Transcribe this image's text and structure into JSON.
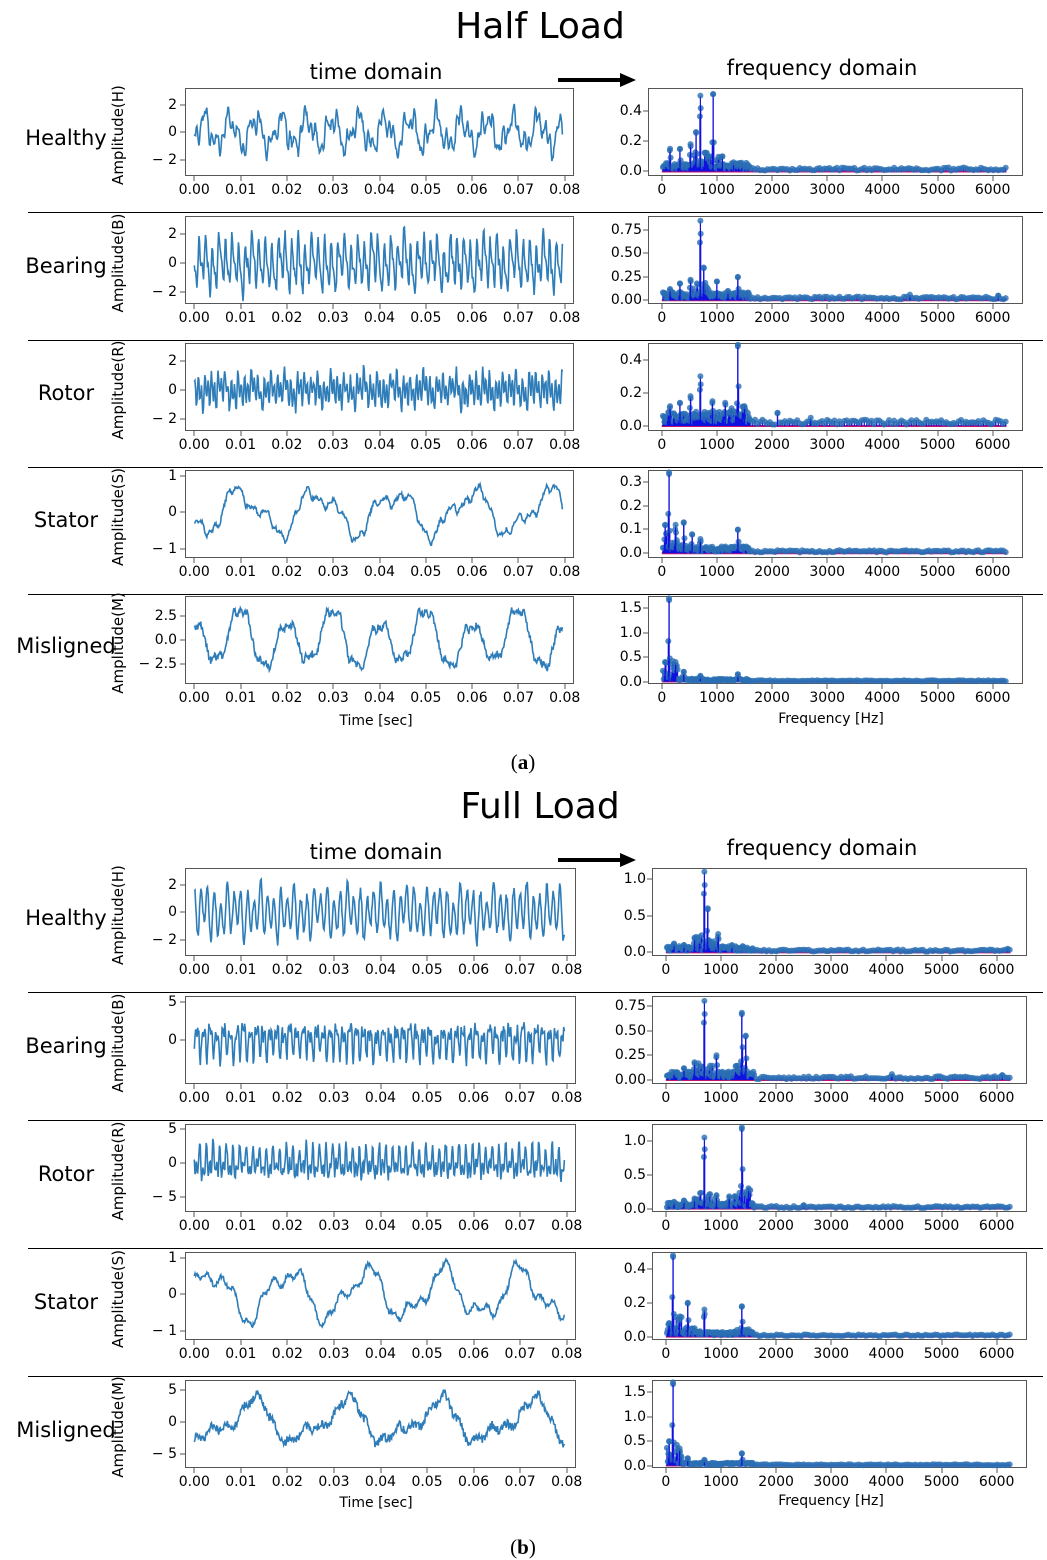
{
  "figure": {
    "caption_a": "a",
    "caption_b": "b",
    "arrow_icon": "right-arrow-icon"
  },
  "colors": {
    "time_line": "#2f7db8",
    "stem": "#1010e0",
    "marker": "#2a6fb4",
    "baseline": "#c0146e"
  },
  "chart_data": [
    {
      "panel": "a",
      "title": "Half Load",
      "left_column_title": "time domain",
      "right_column_title": "frequency domain",
      "time_xlabel": "Time [sec]",
      "freq_xlabel": "Frequency [Hz]",
      "time_xticks": [
        "0.00",
        "0.01",
        "0.02",
        "0.03",
        "0.04",
        "0.05",
        "0.06",
        "0.07",
        "0.08"
      ],
      "freq_xticks": [
        "0",
        "1000",
        "2000",
        "3000",
        "4000",
        "5000",
        "6000"
      ],
      "xlim_time": [
        -0.002,
        0.082
      ],
      "xlim_freq": [
        -250,
        6550
      ],
      "rows": [
        {
          "name": "Healthy",
          "ylabel": "Amplitude(H)",
          "time": {
            "type": "line",
            "ylim": [
              -3.2,
              3.2
            ],
            "yticks": [
              "2",
              "0",
              "− 2"
            ],
            "ytick_values": [
              2,
              0,
              -2
            ],
            "amplitude": 2.4,
            "components": [
              [
                180,
                1.0
              ],
              [
                420,
                0.6
              ],
              [
                890,
                0.45
              ],
              [
                1300,
                0.25
              ]
            ],
            "noise": 0.25
          },
          "freq": {
            "type": "stem",
            "ylim": [
              -0.03,
              0.55
            ],
            "yticks": [
              "0.4",
              "0.2",
              "0.0"
            ],
            "ytick_values": [
              0.4,
              0.2,
              0.0
            ],
            "peaks": [
              [
                150,
                0.15
              ],
              [
                330,
                0.15
              ],
              [
                520,
                0.18
              ],
              [
                620,
                0.26
              ],
              [
                700,
                0.5
              ],
              [
                930,
                0.51
              ],
              [
                1100,
                0.1
              ],
              [
                1300,
                0.06
              ],
              [
                1450,
                0.04
              ]
            ],
            "floor": 0.02
          }
        },
        {
          "name": "Bearing",
          "ylabel": "Amplitude(B)",
          "time": {
            "type": "line",
            "ylim": [
              -2.8,
              3.2
            ],
            "yticks": [
              "2",
              "0",
              "− 2"
            ],
            "ytick_values": [
              2,
              0,
              -2
            ],
            "amplitude": 2.6,
            "components": [
              [
                700,
                1.0
              ],
              [
                1400,
                0.5
              ],
              [
                300,
                0.35
              ],
              [
                160,
                0.2
              ]
            ],
            "noise": 0.3
          },
          "freq": {
            "type": "stem",
            "ylim": [
              -0.04,
              0.9
            ],
            "yticks": [
              "0.75",
              "0.50",
              "0.25",
              "0.00"
            ],
            "ytick_values": [
              0.75,
              0.5,
              0.25,
              0.0
            ],
            "peaks": [
              [
                150,
                0.12
              ],
              [
                330,
                0.18
              ],
              [
                520,
                0.22
              ],
              [
                700,
                0.85
              ],
              [
                760,
                0.35
              ],
              [
                1000,
                0.2
              ],
              [
                1200,
                0.1
              ],
              [
                1380,
                0.25
              ],
              [
                4500,
                0.06
              ],
              [
                6100,
                0.05
              ]
            ],
            "floor": 0.03
          }
        },
        {
          "name": "Rotor",
          "ylabel": "Amplitude(R)",
          "time": {
            "type": "line",
            "ylim": [
              -2.8,
              3.2
            ],
            "yticks": [
              "2",
              "0",
              "− 2"
            ],
            "ytick_values": [
              2,
              0,
              -2
            ],
            "amplitude": 1.7,
            "components": [
              [
                1400,
                1.0
              ],
              [
                700,
                0.6
              ],
              [
                300,
                0.35
              ],
              [
                160,
                0.25
              ]
            ],
            "noise": 0.35
          },
          "freq": {
            "type": "stem",
            "ylim": [
              -0.03,
              0.5
            ],
            "yticks": [
              "0.4",
              "0.2",
              "0.0"
            ],
            "ytick_values": [
              0.4,
              0.2,
              0.0
            ],
            "peaks": [
              [
                150,
                0.12
              ],
              [
                330,
                0.14
              ],
              [
                520,
                0.18
              ],
              [
                700,
                0.3
              ],
              [
                920,
                0.15
              ],
              [
                1150,
                0.14
              ],
              [
                1380,
                0.49
              ],
              [
                1500,
                0.12
              ],
              [
                2100,
                0.08
              ],
              [
                2700,
                0.05
              ]
            ],
            "floor": 0.03
          }
        },
        {
          "name": "Stator",
          "ylabel": "Amplitude(S)",
          "time": {
            "type": "line",
            "ylim": [
              -1.25,
              1.15
            ],
            "yticks": [
              "1",
              "0",
              "− 1"
            ],
            "ytick_values": [
              1,
              0,
              -1
            ],
            "amplitude": 0.9,
            "components": [
              [
                60,
                1.0
              ],
              [
                130,
                0.45
              ],
              [
                350,
                0.2
              ],
              [
                700,
                0.1
              ]
            ],
            "noise": 0.1
          },
          "freq": {
            "type": "stem",
            "ylim": [
              -0.02,
              0.35
            ],
            "yticks": [
              "0.3",
              "0.2",
              "0.1",
              "0.0"
            ],
            "ytick_values": [
              0.3,
              0.2,
              0.1,
              0.0
            ],
            "peaks": [
              [
                60,
                0.12
              ],
              [
                130,
                0.34
              ],
              [
                250,
                0.12
              ],
              [
                400,
                0.13
              ],
              [
                550,
                0.08
              ],
              [
                700,
                0.06
              ],
              [
                1380,
                0.1
              ]
            ],
            "floor": 0.01
          }
        },
        {
          "name": "Misligned",
          "ylabel": "Amplitude(M)",
          "time": {
            "type": "line",
            "ylim": [
              -4.6,
              4.6
            ],
            "yticks": [
              "2.5",
              "0.0",
              "− 2.5"
            ],
            "ytick_values": [
              2.5,
              0,
              -2.5
            ],
            "amplitude": 3.4,
            "components": [
              [
                100,
                1.0
              ],
              [
                50,
                0.35
              ],
              [
                300,
                0.2
              ],
              [
                700,
                0.1
              ]
            ],
            "noise": 0.15
          },
          "freq": {
            "type": "stem",
            "ylim": [
              -0.05,
              1.75
            ],
            "yticks": [
              "1.5",
              "1.0",
              "0.5",
              "0.0"
            ],
            "ytick_values": [
              1.5,
              1.0,
              0.5,
              0.0
            ],
            "peaks": [
              [
                60,
                0.4
              ],
              [
                130,
                1.7
              ],
              [
                250,
                0.4
              ],
              [
                400,
                0.2
              ],
              [
                700,
                0.12
              ],
              [
                1380,
                0.15
              ]
            ],
            "floor": 0.02
          }
        }
      ]
    },
    {
      "panel": "b",
      "title": "Full Load",
      "left_column_title": "time domain",
      "right_column_title": "frequency domain",
      "time_xlabel": "Time [sec]",
      "freq_xlabel": "Frequency [Hz]",
      "time_xticks": [
        "0.00",
        "0.01",
        "0.02",
        "0.03",
        "0.04",
        "0.05",
        "0.06",
        "0.07",
        "0.08"
      ],
      "freq_xticks": [
        "0",
        "1000",
        "2000",
        "3000",
        "4000",
        "5000",
        "6000"
      ],
      "xlim_time": [
        -0.002,
        0.082
      ],
      "xlim_freq": [
        -250,
        6550
      ],
      "rows": [
        {
          "name": "Healthy",
          "ylabel": "Amplitude(H)",
          "time": {
            "type": "line",
            "ylim": [
              -3.2,
              3.2
            ],
            "yticks": [
              "2",
              "0",
              "− 2"
            ],
            "ytick_values": [
              2,
              0,
              -2
            ],
            "amplitude": 2.5,
            "components": [
              [
                700,
                1.0
              ],
              [
                420,
                0.35
              ],
              [
                160,
                0.25
              ]
            ],
            "noise": 0.2
          },
          "freq": {
            "type": "stem",
            "ylim": [
              -0.05,
              1.15
            ],
            "yticks": [
              "1.0",
              "0.5",
              "0.0"
            ],
            "ytick_values": [
              1.0,
              0.5,
              0.0
            ],
            "peaks": [
              [
                150,
                0.12
              ],
              [
                330,
                0.1
              ],
              [
                520,
                0.2
              ],
              [
                700,
                1.1
              ],
              [
                760,
                0.6
              ],
              [
                950,
                0.25
              ],
              [
                1200,
                0.1
              ],
              [
                6200,
                0.05
              ]
            ],
            "floor": 0.03
          }
        },
        {
          "name": "Bearing",
          "ylabel": "Amplitude(B)",
          "time": {
            "type": "line",
            "ylim": [
              -5.8,
              5.8
            ],
            "yticks": [
              "5",
              "0"
            ],
            "ytick_values": [
              5,
              0
            ],
            "amplitude": 3.5,
            "components": [
              [
                700,
                1.0
              ],
              [
                1400,
                0.7
              ],
              [
                300,
                0.25
              ]
            ],
            "noise": 0.5
          },
          "freq": {
            "type": "stem",
            "ylim": [
              -0.04,
              0.85
            ],
            "yticks": [
              "0.75",
              "0.50",
              "0.25",
              "0.00"
            ],
            "ytick_values": [
              0.75,
              0.5,
              0.25,
              0.0
            ],
            "peaks": [
              [
                150,
                0.08
              ],
              [
                330,
                0.12
              ],
              [
                520,
                0.18
              ],
              [
                700,
                0.8
              ],
              [
                920,
                0.25
              ],
              [
                1380,
                0.68
              ],
              [
                1450,
                0.45
              ],
              [
                4100,
                0.06
              ],
              [
                6100,
                0.05
              ]
            ],
            "floor": 0.03
          }
        },
        {
          "name": "Rotor",
          "ylabel": "Amplitude(R)",
          "time": {
            "type": "line",
            "ylim": [
              -7.2,
              5.8
            ],
            "yticks": [
              "5",
              "0",
              "− 5"
            ],
            "ytick_values": [
              5,
              0,
              -5
            ],
            "amplitude": 3.6,
            "components": [
              [
                700,
                1.0
              ],
              [
                1400,
                0.9
              ],
              [
                300,
                0.25
              ]
            ],
            "noise": 0.5
          },
          "freq": {
            "type": "stem",
            "ylim": [
              -0.05,
              1.25
            ],
            "yticks": [
              "1.0",
              "0.5",
              "0.0"
            ],
            "ytick_values": [
              1.0,
              0.5,
              0.0
            ],
            "peaks": [
              [
                150,
                0.1
              ],
              [
                330,
                0.12
              ],
              [
                520,
                0.15
              ],
              [
                700,
                1.05
              ],
              [
                920,
                0.2
              ],
              [
                1150,
                0.18
              ],
              [
                1380,
                1.2
              ],
              [
                1500,
                0.3
              ],
              [
                2500,
                0.05
              ]
            ],
            "floor": 0.03
          }
        },
        {
          "name": "Stator",
          "ylabel": "Amplitude(S)",
          "time": {
            "type": "line",
            "ylim": [
              -1.25,
              1.15
            ],
            "yticks": [
              "1",
              "0",
              "− 1"
            ],
            "ytick_values": [
              1,
              0,
              -1
            ],
            "amplitude": 0.95,
            "components": [
              [
                60,
                1.0
              ],
              [
                130,
                0.4
              ],
              [
                350,
                0.2
              ]
            ],
            "noise": 0.1
          },
          "freq": {
            "type": "stem",
            "ylim": [
              -0.02,
              0.5
            ],
            "yticks": [
              "0.4",
              "0.2",
              "0.0"
            ],
            "ytick_values": [
              0.4,
              0.2,
              0.0
            ],
            "peaks": [
              [
                60,
                0.08
              ],
              [
                130,
                0.48
              ],
              [
                250,
                0.1
              ],
              [
                400,
                0.2
              ],
              [
                700,
                0.16
              ],
              [
                1380,
                0.18
              ]
            ],
            "floor": 0.01
          }
        },
        {
          "name": "Misligned",
          "ylabel": "Amplitude(M)",
          "time": {
            "type": "line",
            "ylim": [
              -7.2,
              6.6
            ],
            "yticks": [
              "5",
              "0",
              "− 5"
            ],
            "ytick_values": [
              5,
              0,
              -5
            ],
            "amplitude": 5.0,
            "components": [
              [
                50,
                1.0
              ],
              [
                100,
                0.5
              ],
              [
                300,
                0.2
              ]
            ],
            "noise": 0.25
          },
          "freq": {
            "type": "stem",
            "ylim": [
              -0.05,
              1.75
            ],
            "yticks": [
              "1.5",
              "1.0",
              "0.5",
              "0.0"
            ],
            "ytick_values": [
              1.5,
              1.0,
              0.5,
              0.0
            ],
            "peaks": [
              [
                60,
                0.5
              ],
              [
                130,
                1.7
              ],
              [
                250,
                0.35
              ],
              [
                400,
                0.15
              ],
              [
                700,
                0.12
              ],
              [
                1380,
                0.25
              ]
            ],
            "floor": 0.02
          }
        }
      ]
    }
  ]
}
